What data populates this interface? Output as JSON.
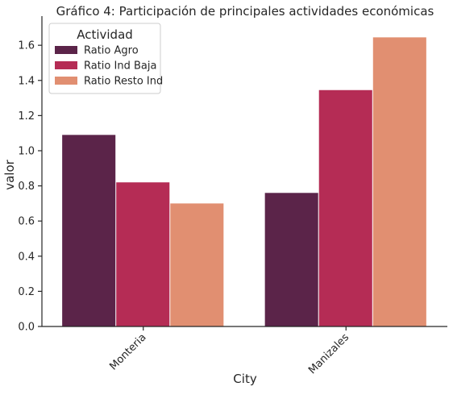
{
  "chart_data": {
    "type": "bar",
    "title": "Gráfico 4: Participación de principales actividades económicas",
    "xlabel": "City",
    "ylabel": "valor",
    "categories": [
      "Monteria",
      "Manizales"
    ],
    "series": [
      {
        "name": "Ratio Agro",
        "values": [
          1.09,
          0.76
        ],
        "color": "#5b2449"
      },
      {
        "name": "Ratio Ind Baja",
        "values": [
          0.82,
          1.345
        ],
        "color": "#b52c55"
      },
      {
        "name": "Ratio Resto Ind",
        "values": [
          0.7,
          1.645
        ],
        "color": "#e18f71"
      }
    ],
    "ylim": [
      0,
      1.72
    ],
    "yticks": [
      "0.0",
      "0.2",
      "0.4",
      "0.6",
      "0.8",
      "1.0",
      "1.2",
      "1.4",
      "1.6"
    ],
    "legend": {
      "title": "Actividad",
      "placement": "top-left"
    },
    "grid": false
  }
}
